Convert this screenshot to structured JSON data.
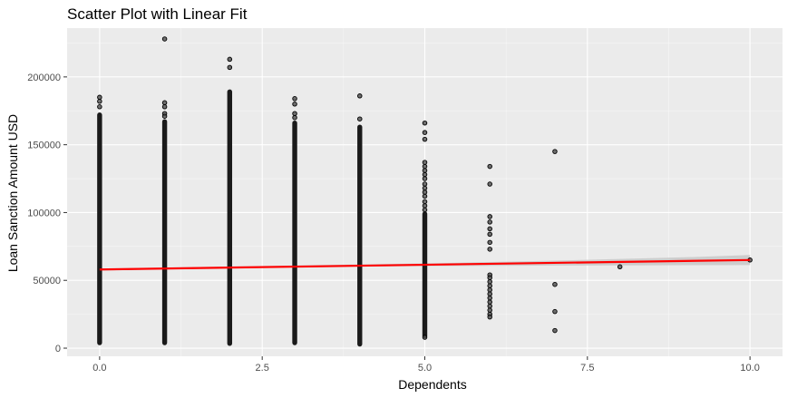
{
  "chart_data": {
    "type": "scatter",
    "title": "Scatter Plot with Linear Fit",
    "xlabel": "Dependents",
    "ylabel": "Loan Sanction Amount USD",
    "xlim": [
      -0.5,
      10.5
    ],
    "ylim": [
      -6000,
      236000
    ],
    "x_ticks": [
      0,
      2.5,
      5,
      7.5,
      10
    ],
    "x_tick_labels": [
      "0.0",
      "2.5",
      "5.0",
      "7.5",
      "10.0"
    ],
    "y_ticks": [
      0,
      50000,
      100000,
      150000,
      200000
    ],
    "y_tick_labels": [
      "0",
      "50000",
      "100000",
      "150000",
      "200000"
    ],
    "grid": true,
    "background": "#ebebeb",
    "point_color": "#000000",
    "point_alpha": 0.6,
    "fit_color": "#ff0000",
    "ci_color": "#c8c8c8",
    "columns": [
      {
        "x": 0,
        "ymin": 4000,
        "ymax": 172000
      },
      {
        "x": 1,
        "ymin": 4000,
        "ymax": 167000
      },
      {
        "x": 2,
        "ymin": 3500,
        "ymax": 189000
      },
      {
        "x": 3,
        "ymin": 4000,
        "ymax": 166000
      },
      {
        "x": 4,
        "ymin": 3000,
        "ymax": 163000
      },
      {
        "x": 5,
        "ymin": 9000,
        "ymax": 99000
      }
    ],
    "points": [
      {
        "x": 0,
        "y": 182000
      },
      {
        "x": 0,
        "y": 185000
      },
      {
        "x": 0,
        "y": 178000
      },
      {
        "x": 1,
        "y": 228000
      },
      {
        "x": 1,
        "y": 181000
      },
      {
        "x": 1,
        "y": 178000
      },
      {
        "x": 1,
        "y": 173000
      },
      {
        "x": 1,
        "y": 171000
      },
      {
        "x": 2,
        "y": 213000
      },
      {
        "x": 2,
        "y": 207000
      },
      {
        "x": 3,
        "y": 184000
      },
      {
        "x": 3,
        "y": 180000
      },
      {
        "x": 3,
        "y": 173000
      },
      {
        "x": 3,
        "y": 170000
      },
      {
        "x": 4,
        "y": 186000
      },
      {
        "x": 4,
        "y": 169000
      },
      {
        "x": 5,
        "y": 166000
      },
      {
        "x": 5,
        "y": 159000
      },
      {
        "x": 5,
        "y": 154000
      },
      {
        "x": 5,
        "y": 137000
      },
      {
        "x": 5,
        "y": 134000
      },
      {
        "x": 5,
        "y": 131000
      },
      {
        "x": 5,
        "y": 128000
      },
      {
        "x": 5,
        "y": 125000
      },
      {
        "x": 5,
        "y": 121000
      },
      {
        "x": 5,
        "y": 118000
      },
      {
        "x": 5,
        "y": 115000
      },
      {
        "x": 5,
        "y": 112000
      },
      {
        "x": 5,
        "y": 108000
      },
      {
        "x": 5,
        "y": 105000
      },
      {
        "x": 5,
        "y": 102000
      },
      {
        "x": 5,
        "y": 8000
      },
      {
        "x": 6,
        "y": 134000
      },
      {
        "x": 6,
        "y": 121000
      },
      {
        "x": 6,
        "y": 97000
      },
      {
        "x": 6,
        "y": 93000
      },
      {
        "x": 6,
        "y": 88000
      },
      {
        "x": 6,
        "y": 84000
      },
      {
        "x": 6,
        "y": 78000
      },
      {
        "x": 6,
        "y": 73000
      },
      {
        "x": 6,
        "y": 54000
      },
      {
        "x": 6,
        "y": 52000
      },
      {
        "x": 6,
        "y": 49000
      },
      {
        "x": 6,
        "y": 46000
      },
      {
        "x": 6,
        "y": 43000
      },
      {
        "x": 6,
        "y": 40000
      },
      {
        "x": 6,
        "y": 37000
      },
      {
        "x": 6,
        "y": 34000
      },
      {
        "x": 6,
        "y": 31000
      },
      {
        "x": 6,
        "y": 28000
      },
      {
        "x": 6,
        "y": 25000
      },
      {
        "x": 6,
        "y": 23000
      },
      {
        "x": 7,
        "y": 145000
      },
      {
        "x": 7,
        "y": 47000
      },
      {
        "x": 7,
        "y": 27000
      },
      {
        "x": 7,
        "y": 13000
      },
      {
        "x": 8,
        "y": 60000
      },
      {
        "x": 10,
        "y": 65000
      }
    ],
    "fit_line": {
      "x": [
        0,
        10
      ],
      "y": [
        58000,
        65000
      ]
    },
    "confidence_band": [
      {
        "x": 0,
        "lower": 57300,
        "upper": 58700
      },
      {
        "x": 2,
        "lower": 59000,
        "upper": 60200
      },
      {
        "x": 4,
        "lower": 60200,
        "upper": 61800
      },
      {
        "x": 5,
        "lower": 60500,
        "upper": 62500
      },
      {
        "x": 6,
        "lower": 60700,
        "upper": 63500
      },
      {
        "x": 7,
        "lower": 60900,
        "upper": 64500
      },
      {
        "x": 8,
        "lower": 61000,
        "upper": 65800
      },
      {
        "x": 9,
        "lower": 61200,
        "upper": 67000
      },
      {
        "x": 10,
        "lower": 61300,
        "upper": 68700
      }
    ]
  }
}
